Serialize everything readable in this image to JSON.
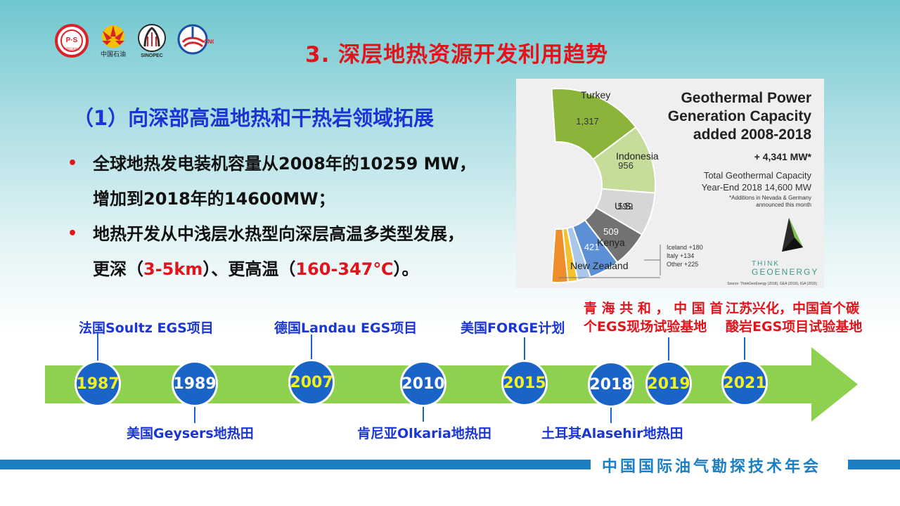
{
  "header": {
    "title": "3. 深层地热资源开发利用趋势",
    "logos": [
      {
        "name": "cps-logo",
        "text": "P·S",
        "caption": "中国石油学会"
      },
      {
        "name": "petrochina-logo",
        "caption": "中国石油"
      },
      {
        "name": "sinopec-logo",
        "caption": "SINOPEC"
      },
      {
        "name": "cnooc-logo",
        "caption": "CNOOC"
      }
    ]
  },
  "main": {
    "subtitle": "（1）向深部高温地热和干热岩领域拓展",
    "bullets": [
      {
        "line1": "全球地热发电装机容量从2008年的10259 MW，",
        "line2": "增加到2018年的14600MW；"
      },
      {
        "line1": "地热开发从中浅层水热型向深层高温多类型发展，",
        "line2_pre": "更深（",
        "line2_red1": "3-5km",
        "line2_mid": "）、更高温（",
        "line2_red2": "160-347℃",
        "line2_post": "）。"
      }
    ]
  },
  "chart_data": {
    "type": "pie",
    "title": "Geothermal Power Generation Capacity added 2008-2018",
    "title_lines": [
      "Geothermal Power",
      "Generation Capacity",
      "added 2008-2018"
    ],
    "total_added": "+ 4,341 MW*",
    "total_line1": "Total Geothermal Capacity",
    "total_line2": "Year-End 2018  14,600 MW",
    "footnote_line1": "*Additions in Nevada & Germany",
    "footnote_line2": "announced this month",
    "others_line1": "Iceland +180",
    "others_line2": "Italy +134",
    "others_line3": "Other +225",
    "source": "Source: ThinkGeoEnergy (2018), GEA (2016), IGA (2015)",
    "brand_line1": "THINK",
    "brand_line2": "GEOENERGY",
    "slices": [
      {
        "label": "Turkey",
        "value": 1317,
        "display": "1,317",
        "color": "#8cb43a"
      },
      {
        "label": "Indonesia",
        "value": 956,
        "display": "956",
        "color": "#c6dc9a"
      },
      {
        "label": "U.S.",
        "value": 599,
        "display": "599",
        "color": "#d6d6d6"
      },
      {
        "label": "Kenya",
        "value": 509,
        "display": "509",
        "color": "#727272"
      },
      {
        "label": "New Zealand",
        "value": 421,
        "display": "421",
        "color": "#5b8fd6"
      },
      {
        "label": "Iceland",
        "value": 180,
        "display": "",
        "color": "#a9c7ea"
      },
      {
        "label": "Italy",
        "value": 134,
        "display": "",
        "color": "#f4c02e"
      },
      {
        "label": "Other",
        "value": 225,
        "display": "",
        "color": "#ef8c2c"
      }
    ]
  },
  "timeline": {
    "events": [
      {
        "year": "1987",
        "label": "法国Soultz EGS项目",
        "year_color": "yellow",
        "label_color": "blue"
      },
      {
        "year": "1989",
        "label": "美国Geysers地热田",
        "year_color": "white",
        "label_color": "blue"
      },
      {
        "year": "2007",
        "label": "德国Landau EGS项目",
        "year_color": "yellow",
        "label_color": "blue"
      },
      {
        "year": "2010",
        "label": "肯尼亚Olkaria地热田",
        "year_color": "white",
        "label_color": "blue"
      },
      {
        "year": "2015",
        "label": "美国FORGE计划",
        "year_color": "yellow",
        "label_color": "blue"
      },
      {
        "year": "2018",
        "label": "土耳其Alasehir地热田",
        "year_color": "white",
        "label_color": "blue"
      },
      {
        "year": "2019",
        "label_line1": "青 海 共 和 ， 中 国 首",
        "label_line2": "个EGS现场试验基地",
        "year_color": "yellow",
        "label_color": "red"
      },
      {
        "year": "2021",
        "label_line1": "江苏兴化，中国首个碳",
        "label_line2": "酸岩EGS项目试验基地",
        "year_color": "yellow",
        "label_color": "red"
      }
    ]
  },
  "footer": {
    "text": "中国国际油气勘探技术年会",
    "bar_color": "#1a7fc4"
  }
}
